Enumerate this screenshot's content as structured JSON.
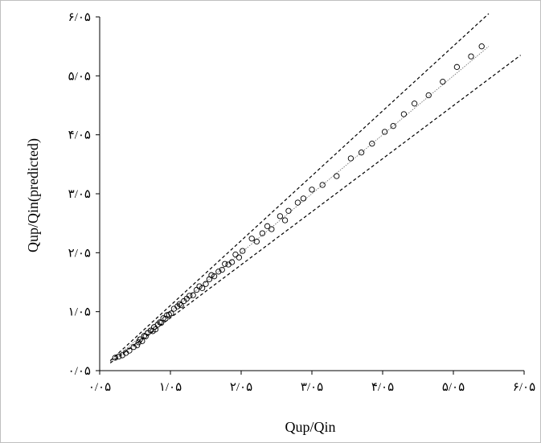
{
  "chart_data": {
    "type": "scatter",
    "xlabel": "Qup/Qin",
    "ylabel": "Qup/Qin(predicted)",
    "xlim": [
      0.05,
      6.05
    ],
    "ylim": [
      0.05,
      6.05
    ],
    "x_ticks": [
      {
        "value": 0.05,
        "label": "۰/۰۵"
      },
      {
        "value": 1.05,
        "label": "۱/۰۵"
      },
      {
        "value": 2.05,
        "label": "۲/۰۵"
      },
      {
        "value": 3.05,
        "label": "۳/۰۵"
      },
      {
        "value": 4.05,
        "label": "۴/۰۵"
      },
      {
        "value": 5.05,
        "label": "۵/۰۵"
      },
      {
        "value": 6.05,
        "label": "۶/۰۵"
      }
    ],
    "y_ticks": [
      {
        "value": 0.05,
        "label": "۰/۰۵"
      },
      {
        "value": 1.05,
        "label": "۱/۰۵"
      },
      {
        "value": 2.05,
        "label": "۲/۰۵"
      },
      {
        "value": 3.05,
        "label": "۳/۰۵"
      },
      {
        "value": 4.05,
        "label": "۴/۰۵"
      },
      {
        "value": 5.05,
        "label": "۵/۰۵"
      },
      {
        "value": 6.05,
        "label": "۶/۰۵"
      }
    ],
    "grid": false,
    "legend": "none",
    "marker": "open-circle",
    "reference_lines": [
      {
        "style": "dotted",
        "slope": 1.0,
        "x_range": [
          0.2,
          5.55
        ]
      },
      {
        "style": "dashed",
        "slope": 1.1,
        "x_range": [
          0.2,
          5.55
        ]
      },
      {
        "style": "dashed",
        "slope": 0.9,
        "x_range": [
          0.2,
          6.0
        ]
      }
    ],
    "points": [
      {
        "x": 0.27,
        "y": 0.27
      },
      {
        "x": 0.32,
        "y": 0.29
      },
      {
        "x": 0.37,
        "y": 0.31
      },
      {
        "x": 0.42,
        "y": 0.35
      },
      {
        "x": 0.47,
        "y": 0.39
      },
      {
        "x": 0.53,
        "y": 0.45
      },
      {
        "x": 0.58,
        "y": 0.48
      },
      {
        "x": 0.6,
        "y": 0.53
      },
      {
        "x": 0.62,
        "y": 0.58
      },
      {
        "x": 0.65,
        "y": 0.55
      },
      {
        "x": 0.68,
        "y": 0.64
      },
      {
        "x": 0.7,
        "y": 0.63
      },
      {
        "x": 0.73,
        "y": 0.69
      },
      {
        "x": 0.77,
        "y": 0.73
      },
      {
        "x": 0.8,
        "y": 0.72
      },
      {
        "x": 0.82,
        "y": 0.79
      },
      {
        "x": 0.84,
        "y": 0.75
      },
      {
        "x": 0.87,
        "y": 0.83
      },
      {
        "x": 0.9,
        "y": 0.87
      },
      {
        "x": 0.92,
        "y": 0.86
      },
      {
        "x": 0.95,
        "y": 0.94
      },
      {
        "x": 0.98,
        "y": 0.93
      },
      {
        "x": 1.0,
        "y": 0.99
      },
      {
        "x": 1.03,
        "y": 1.0
      },
      {
        "x": 1.06,
        "y": 1.02
      },
      {
        "x": 1.1,
        "y": 1.1
      },
      {
        "x": 1.15,
        "y": 1.14
      },
      {
        "x": 1.18,
        "y": 1.18
      },
      {
        "x": 1.2,
        "y": 1.16
      },
      {
        "x": 1.24,
        "y": 1.23
      },
      {
        "x": 1.28,
        "y": 1.27
      },
      {
        "x": 1.32,
        "y": 1.32
      },
      {
        "x": 1.37,
        "y": 1.33
      },
      {
        "x": 1.42,
        "y": 1.42
      },
      {
        "x": 1.46,
        "y": 1.48
      },
      {
        "x": 1.5,
        "y": 1.45
      },
      {
        "x": 1.55,
        "y": 1.52
      },
      {
        "x": 1.6,
        "y": 1.6
      },
      {
        "x": 1.63,
        "y": 1.67
      },
      {
        "x": 1.67,
        "y": 1.65
      },
      {
        "x": 1.73,
        "y": 1.73
      },
      {
        "x": 1.78,
        "y": 1.76
      },
      {
        "x": 1.82,
        "y": 1.86
      },
      {
        "x": 1.87,
        "y": 1.85
      },
      {
        "x": 1.92,
        "y": 1.89
      },
      {
        "x": 1.97,
        "y": 2.02
      },
      {
        "x": 2.02,
        "y": 1.97
      },
      {
        "x": 2.07,
        "y": 2.08
      },
      {
        "x": 2.2,
        "y": 2.29
      },
      {
        "x": 2.27,
        "y": 2.24
      },
      {
        "x": 2.35,
        "y": 2.38
      },
      {
        "x": 2.42,
        "y": 2.5
      },
      {
        "x": 2.48,
        "y": 2.45
      },
      {
        "x": 2.6,
        "y": 2.67
      },
      {
        "x": 2.67,
        "y": 2.6
      },
      {
        "x": 2.72,
        "y": 2.76
      },
      {
        "x": 2.85,
        "y": 2.9
      },
      {
        "x": 2.93,
        "y": 2.97
      },
      {
        "x": 3.05,
        "y": 3.12
      },
      {
        "x": 3.2,
        "y": 3.2
      },
      {
        "x": 3.4,
        "y": 3.35
      },
      {
        "x": 3.6,
        "y": 3.65
      },
      {
        "x": 3.75,
        "y": 3.75
      },
      {
        "x": 3.9,
        "y": 3.9
      },
      {
        "x": 4.08,
        "y": 4.1
      },
      {
        "x": 4.2,
        "y": 4.2
      },
      {
        "x": 4.35,
        "y": 4.4
      },
      {
        "x": 4.5,
        "y": 4.58
      },
      {
        "x": 4.7,
        "y": 4.72
      },
      {
        "x": 4.9,
        "y": 4.95
      },
      {
        "x": 5.1,
        "y": 5.2
      },
      {
        "x": 5.3,
        "y": 5.38
      },
      {
        "x": 5.45,
        "y": 5.55
      }
    ]
  }
}
